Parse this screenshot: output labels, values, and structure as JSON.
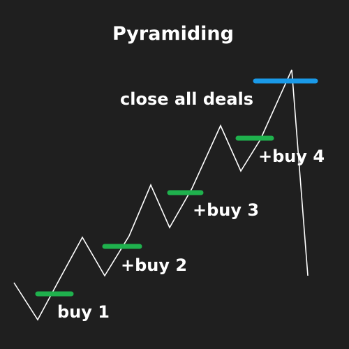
{
  "title": "Pyramiding",
  "labels": {
    "buy1": "buy 1",
    "buy2": "+buy 2",
    "buy3": "+buy 3",
    "buy4": "+buy 4",
    "close": "close all deals"
  },
  "colors": {
    "background": "#1f1f1f",
    "price_line": "#ffffff",
    "buy_marker": "#1fb14d",
    "close_marker": "#1a9ae8",
    "text": "#ffffff"
  }
}
